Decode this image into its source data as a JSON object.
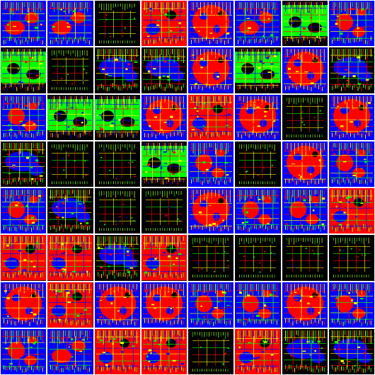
{
  "grid": {
    "rows": 8,
    "cols": 8,
    "tiles": [
      {
        "style": "blue-dense"
      },
      {
        "style": "blue-dense"
      },
      {
        "style": "black-sparse"
      },
      {
        "style": "red-dense"
      },
      {
        "style": "red-blob"
      },
      {
        "style": "blue-dense"
      },
      {
        "style": "green-mix"
      },
      {
        "style": "blue-red"
      },
      {
        "style": "green-mix"
      },
      {
        "style": "black-sparse"
      },
      {
        "style": "blue-black"
      },
      {
        "style": "blue-black"
      },
      {
        "style": "red-blob"
      },
      {
        "style": "green-mix"
      },
      {
        "style": "red-blob"
      },
      {
        "style": "blue-black"
      },
      {
        "style": "blue-red"
      },
      {
        "style": "green-mix"
      },
      {
        "style": "green-mix"
      },
      {
        "style": "red-blob"
      },
      {
        "style": "red-dense"
      },
      {
        "style": "red-blob"
      },
      {
        "style": "black-sparse"
      },
      {
        "style": "red-blob"
      },
      {
        "style": "blue-black"
      },
      {
        "style": "black-sparse"
      },
      {
        "style": "black-sparse"
      },
      {
        "style": "green-mix"
      },
      {
        "style": "blue-red"
      },
      {
        "style": "black-sparse"
      },
      {
        "style": "red-blob"
      },
      {
        "style": "blue-red"
      },
      {
        "style": "blue-red"
      },
      {
        "style": "blue-black"
      },
      {
        "style": "black-sparse"
      },
      {
        "style": "black-sparse"
      },
      {
        "style": "red-blob"
      },
      {
        "style": "blue-red"
      },
      {
        "style": "blue-red"
      },
      {
        "style": "red-dense"
      },
      {
        "style": "red-dense"
      },
      {
        "style": "red-dense"
      },
      {
        "style": "blue-black"
      },
      {
        "style": "red-dense"
      },
      {
        "style": "black-sparse"
      },
      {
        "style": "black-sparse"
      },
      {
        "style": "black-sparse"
      },
      {
        "style": "black-sparse"
      },
      {
        "style": "red-blob"
      },
      {
        "style": "red-dense"
      },
      {
        "style": "red-blob"
      },
      {
        "style": "red-blob"
      },
      {
        "style": "blue-red"
      },
      {
        "style": "blue-red"
      },
      {
        "style": "red-blob"
      },
      {
        "style": "blue-red"
      },
      {
        "style": "blue-red"
      },
      {
        "style": "blue-dense"
      },
      {
        "style": "red-dense"
      },
      {
        "style": "red-dense"
      },
      {
        "style": "black-sparse"
      },
      {
        "style": "red-dense"
      },
      {
        "style": "blue-black"
      },
      {
        "style": "blue-black"
      }
    ]
  },
  "palette": {
    "red": "#ff0000",
    "green": "#00ff00",
    "blue": "#0000ff",
    "black": "#000000",
    "yellow": "#ffff00",
    "white": "#ffffff"
  }
}
